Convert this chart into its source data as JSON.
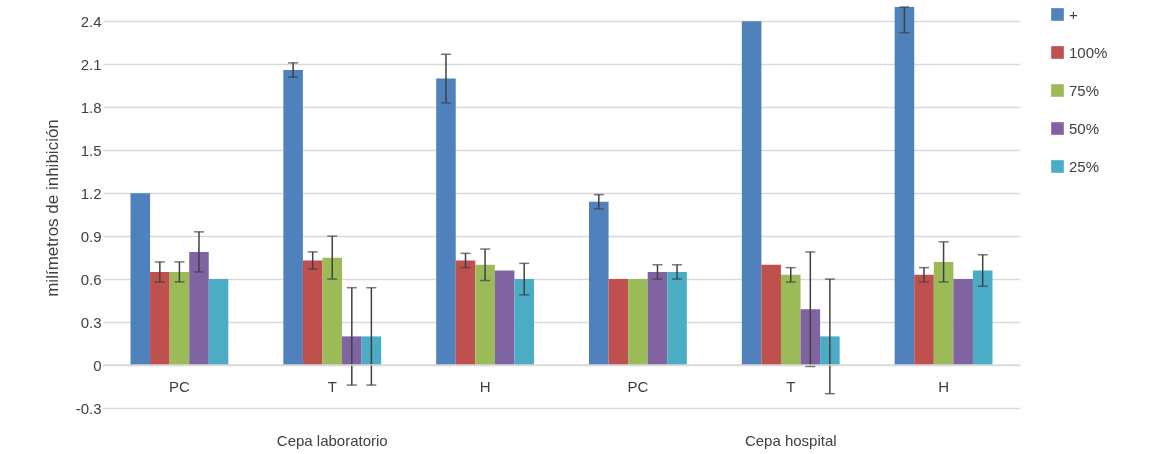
{
  "chart_data": {
    "type": "bar",
    "ylabel": "milímetros de inhibición",
    "categories": [
      "PC",
      "T",
      "H",
      "PC",
      "T",
      "H"
    ],
    "annotations": [
      "Cepa laboratorio",
      "Cepa hospital"
    ],
    "series": [
      {
        "name": "+",
        "color": "#4f81bd",
        "values": [
          1.2,
          2.06,
          2.0,
          1.14,
          2.4,
          2.5
        ],
        "errors": [
          null,
          0.05,
          0.17,
          0.05,
          null,
          [
            2.32,
            2.5
          ]
        ]
      },
      {
        "name": "100%",
        "color": "#c0504d",
        "values": [
          0.65,
          0.73,
          0.73,
          0.6,
          0.7,
          0.63
        ],
        "errors": [
          0.07,
          0.06,
          0.05,
          null,
          null,
          0.05
        ]
      },
      {
        "name": "75%",
        "color": "#9bbb59",
        "values": [
          0.65,
          0.75,
          0.7,
          0.6,
          0.63,
          0.72
        ],
        "errors": [
          0.07,
          0.15,
          0.11,
          null,
          0.05,
          0.14
        ]
      },
      {
        "name": "50%",
        "color": "#8064a2",
        "values": [
          0.79,
          0.2,
          0.66,
          0.65,
          0.39,
          0.6
        ],
        "errors": [
          0.14,
          0.34,
          null,
          0.05,
          0.4,
          null
        ]
      },
      {
        "name": "25%",
        "color": "#4bacc6",
        "values": [
          0.6,
          0.2,
          0.6,
          0.65,
          0.2,
          0.66
        ],
        "errors": [
          null,
          0.34,
          0.11,
          0.05,
          0.4,
          0.11
        ]
      }
    ],
    "ylim": [
      -0.3,
      2.5
    ],
    "yticks": [
      -0.3,
      0,
      0.3,
      0.6,
      0.9,
      1.2,
      1.5,
      1.8,
      2.1,
      2.4
    ],
    "grid": "y",
    "legend": "right"
  }
}
